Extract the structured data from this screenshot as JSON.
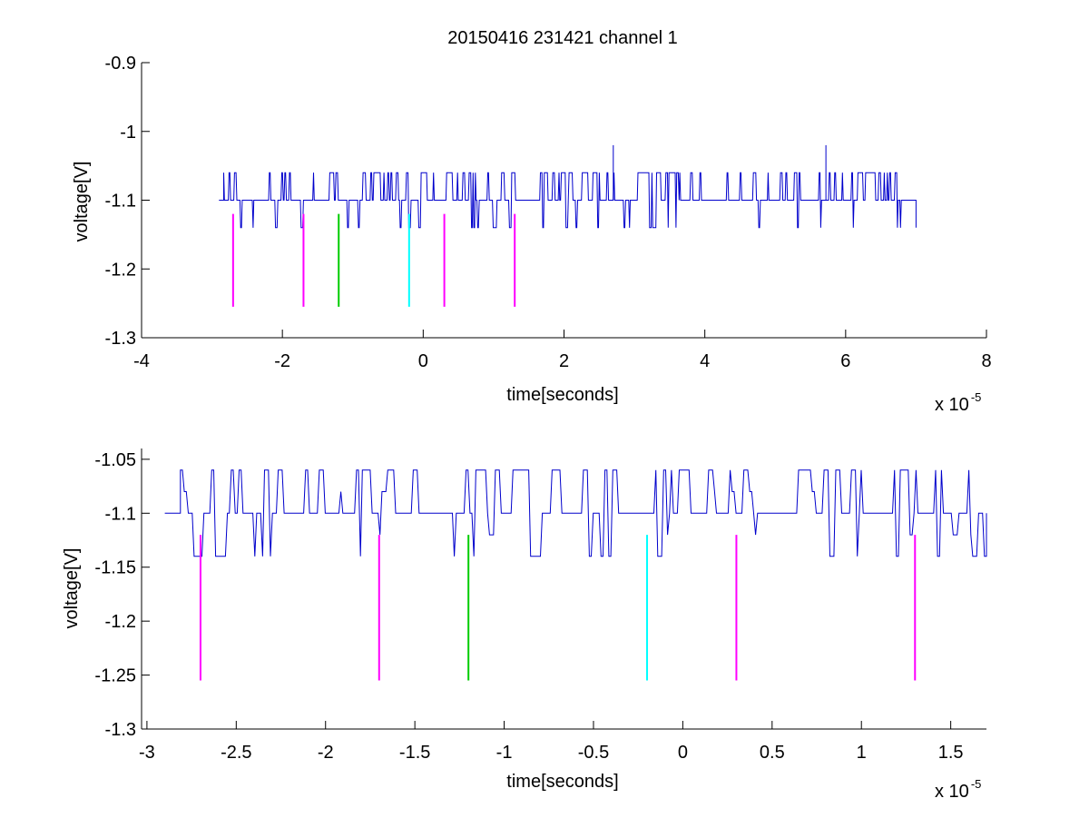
{
  "title": "20150416 231421 channel 1",
  "colors": {
    "trace": "#0000cc",
    "magenta": "#ff00ff",
    "green": "#00cc00",
    "cyan": "#00ffff",
    "axes": "#000000",
    "background": "#ffffff"
  },
  "chart_data": [
    {
      "type": "line",
      "xlabel": "time[seconds]",
      "ylabel": "voltage[V]",
      "x_exponent_base": "x 10",
      "x_exponent_power": "-5",
      "xlim": [
        -4e-05,
        8e-05
      ],
      "ylim": [
        -1.3,
        -0.9
      ],
      "xticks": [
        -4,
        -2,
        0,
        2,
        4,
        6,
        8
      ],
      "xtick_labels": [
        "-4",
        "-2",
        "0",
        "2",
        "4",
        "6",
        "8"
      ],
      "yticks": [
        -1.3,
        -1.2,
        -1.1,
        -1.0,
        -0.9
      ],
      "ytick_labels": [
        "-1.3",
        "-1.2",
        "-1.1",
        "-1",
        "-0.9"
      ],
      "series": [
        {
          "style": "noisy-digital-trace",
          "color": "trace",
          "x_start": -2.9e-05,
          "x_end": 7e-05,
          "baseline": -1.1,
          "levels": [
            -1.14,
            -1.1,
            -1.06
          ],
          "spikes": [
            {
              "x": 2.7e-05,
              "y": -1.02
            },
            {
              "x": 5.72e-05,
              "y": -1.02
            }
          ]
        }
      ],
      "markers": [
        {
          "x": -2.7e-05,
          "y_top": -1.12,
          "y_bottom": -1.255,
          "color": "magenta"
        },
        {
          "x": -1.7e-05,
          "y_top": -1.12,
          "y_bottom": -1.255,
          "color": "magenta"
        },
        {
          "x": -1.2e-05,
          "y_top": -1.12,
          "y_bottom": -1.255,
          "color": "green"
        },
        {
          "x": -2e-06,
          "y_top": -1.12,
          "y_bottom": -1.255,
          "color": "cyan"
        },
        {
          "x": 3e-06,
          "y_top": -1.12,
          "y_bottom": -1.255,
          "color": "magenta"
        },
        {
          "x": 1.3e-05,
          "y_top": -1.12,
          "y_bottom": -1.255,
          "color": "magenta"
        }
      ]
    },
    {
      "type": "line",
      "xlabel": "time[seconds]",
      "ylabel": "voltage[V]",
      "x_exponent_base": "x 10",
      "x_exponent_power": "-5",
      "xlim": [
        -3.03e-05,
        1.7e-05
      ],
      "ylim": [
        -1.3,
        -1.04
      ],
      "xticks": [
        -3,
        -2.5,
        -2,
        -1.5,
        -1,
        -0.5,
        0,
        0.5,
        1,
        1.5
      ],
      "xtick_labels": [
        "-3",
        "-2.5",
        "-2",
        "-1.5",
        "-1",
        "-0.5",
        "0",
        "0.5",
        "1",
        "1.5"
      ],
      "yticks": [
        -1.3,
        -1.25,
        -1.2,
        -1.15,
        -1.1,
        -1.05
      ],
      "ytick_labels": [
        "-1.3",
        "-1.25",
        "-1.2",
        "-1.15",
        "-1.1",
        "-1.05"
      ],
      "series": [
        {
          "style": "noisy-digital-trace",
          "color": "trace",
          "x_start": -2.9e-05,
          "x_end": 1.7e-05,
          "baseline": -1.1,
          "levels": [
            -1.14,
            -1.12,
            -1.1,
            -1.08,
            -1.06
          ]
        }
      ],
      "markers": [
        {
          "x": -2.7e-05,
          "y_top": -1.12,
          "y_bottom": -1.255,
          "color": "magenta"
        },
        {
          "x": -1.7e-05,
          "y_top": -1.12,
          "y_bottom": -1.255,
          "color": "magenta"
        },
        {
          "x": -1.2e-05,
          "y_top": -1.12,
          "y_bottom": -1.255,
          "color": "green"
        },
        {
          "x": -2e-06,
          "y_top": -1.12,
          "y_bottom": -1.255,
          "color": "cyan"
        },
        {
          "x": 3e-06,
          "y_top": -1.12,
          "y_bottom": -1.255,
          "color": "magenta"
        },
        {
          "x": 1.3e-05,
          "y_top": -1.12,
          "y_bottom": -1.255,
          "color": "magenta"
        }
      ]
    }
  ]
}
